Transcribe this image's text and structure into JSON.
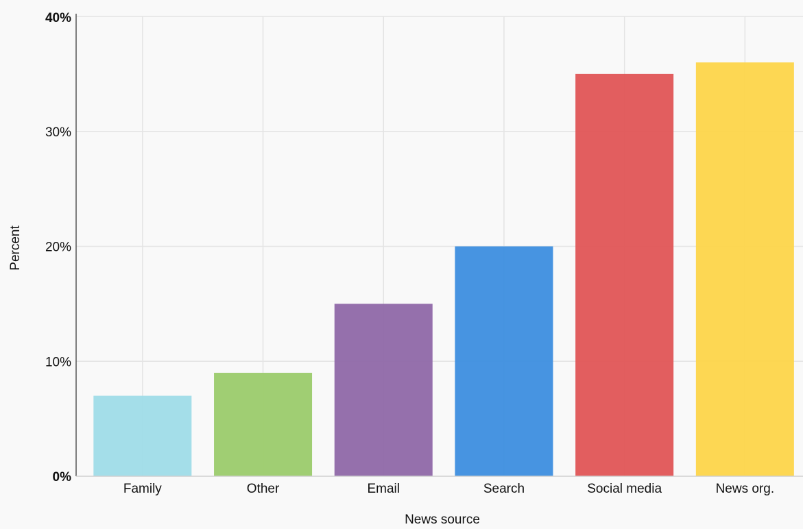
{
  "chart_data": {
    "type": "bar",
    "xlabel": "News source",
    "ylabel": "Percent",
    "categories": [
      "Family",
      "Other",
      "Email",
      "Search",
      "Social media",
      "News org."
    ],
    "values": [
      7,
      9,
      15,
      20,
      35,
      36
    ],
    "colors": [
      "#9fdce8",
      "#9bcb6b",
      "#8f68a8",
      "#3d8edf",
      "#e05556",
      "#fdd54a"
    ],
    "ylim": [
      0,
      40
    ],
    "yticks": [
      0,
      10,
      20,
      30,
      40
    ],
    "ytick_labels": [
      "0%",
      "10%",
      "20%",
      "30%",
      "40%"
    ],
    "grid": true
  }
}
